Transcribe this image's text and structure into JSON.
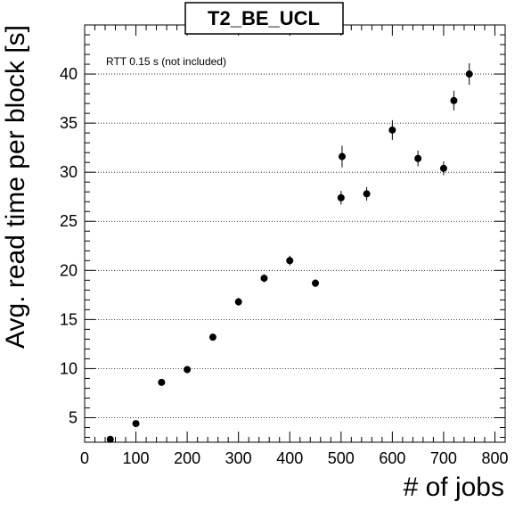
{
  "chart_data": {
    "type": "scatter",
    "title": "T2_BE_UCL",
    "xlabel": "# of jobs",
    "ylabel": "Avg. read time per block [s]",
    "annotation": "RTT 0.15 s (not included)",
    "xlim": [
      0,
      820
    ],
    "ylim": [
      2.5,
      45
    ],
    "x_ticks": [
      0,
      100,
      200,
      300,
      400,
      500,
      600,
      700,
      800
    ],
    "y_ticks": [
      5,
      10,
      15,
      20,
      25,
      30,
      35,
      40
    ],
    "grid": "horizontal-dotted",
    "marker_color": "#000000",
    "points": [
      {
        "x": 50,
        "y": 2.8,
        "err": 0.3
      },
      {
        "x": 100,
        "y": 4.4,
        "err": 0.3
      },
      {
        "x": 150,
        "y": 8.6,
        "err": 0.3
      },
      {
        "x": 200,
        "y": 9.9,
        "err": 0.3
      },
      {
        "x": 250,
        "y": 13.2,
        "err": 0.3
      },
      {
        "x": 300,
        "y": 16.8,
        "err": 0.4
      },
      {
        "x": 350,
        "y": 19.2,
        "err": 0.4
      },
      {
        "x": 400,
        "y": 21.0,
        "err": 0.5
      },
      {
        "x": 450,
        "y": 18.7,
        "err": 0.4
      },
      {
        "x": 500,
        "y": 27.4,
        "err": 0.7
      },
      {
        "x": 502,
        "y": 31.6,
        "err": 1.1
      },
      {
        "x": 550,
        "y": 27.8,
        "err": 0.7
      },
      {
        "x": 600,
        "y": 34.3,
        "err": 1.0
      },
      {
        "x": 650,
        "y": 31.4,
        "err": 0.8
      },
      {
        "x": 700,
        "y": 30.4,
        "err": 0.7
      },
      {
        "x": 720,
        "y": 37.3,
        "err": 1.0
      },
      {
        "x": 750,
        "y": 40.0,
        "err": 1.1
      }
    ]
  }
}
